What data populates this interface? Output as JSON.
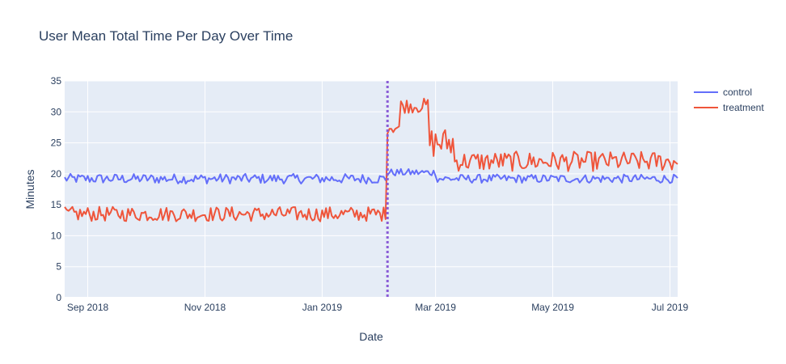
{
  "chart_data": {
    "type": "line",
    "title": "User Mean Total Time Per Day Over Time",
    "xlabel": "Date",
    "ylabel": "Minutes",
    "x_range": [
      "2018-08-20",
      "2019-07-05"
    ],
    "ylim": [
      0,
      35
    ],
    "y_ticks": [
      0,
      5,
      10,
      15,
      20,
      25,
      30,
      35
    ],
    "x_ticks": [
      {
        "date": "2018-09-01",
        "label": "Sep 2018"
      },
      {
        "date": "2018-11-01",
        "label": "Nov 2018"
      },
      {
        "date": "2019-01-01",
        "label": "Jan 2019"
      },
      {
        "date": "2019-03-01",
        "label": "Mar 2019"
      },
      {
        "date": "2019-05-01",
        "label": "May 2019"
      },
      {
        "date": "2019-07-01",
        "label": "Jul 2019"
      }
    ],
    "annotation": {
      "type": "vertical-dotted-line",
      "date": "2019-02-04",
      "color": "#8a5cd6"
    },
    "series": [
      {
        "name": "control",
        "color": "#636efa",
        "segments": [
          {
            "start": "2018-08-20",
            "end": "2019-02-03",
            "mean": 19.2,
            "amp": 0.8
          },
          {
            "start": "2019-02-04",
            "end": "2019-03-01",
            "mean": 20.2,
            "amp": 0.6
          },
          {
            "start": "2019-03-02",
            "end": "2019-07-05",
            "mean": 19.2,
            "amp": 0.7
          }
        ]
      },
      {
        "name": "treatment",
        "color": "#ef553b",
        "segments": [
          {
            "start": "2018-08-20",
            "end": "2019-02-03",
            "mean": 13.5,
            "amp": 1.2
          },
          {
            "start": "2019-02-04",
            "end": "2019-02-10",
            "mean": 27.5,
            "amp": 1.0
          },
          {
            "start": "2019-02-11",
            "end": "2019-02-25",
            "mean": 31.0,
            "amp": 1.2
          },
          {
            "start": "2019-02-26",
            "end": "2019-03-10",
            "mean": 25.0,
            "amp": 2.5
          },
          {
            "start": "2019-03-11",
            "end": "2019-07-05",
            "mean": 22.0,
            "amp": 1.6
          }
        ]
      }
    ],
    "legend": {
      "position": "top-right",
      "entries": [
        "control",
        "treatment"
      ]
    }
  }
}
